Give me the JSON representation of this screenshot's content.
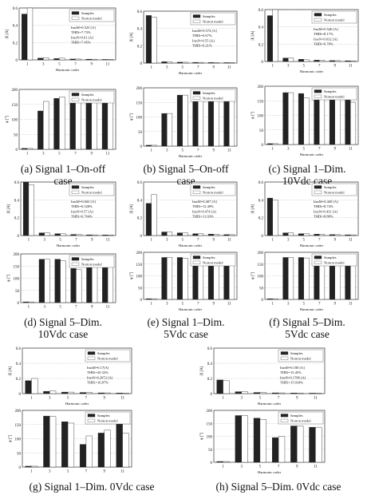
{
  "colors": {
    "samples": "#222222",
    "model": "#ffffff",
    "axis": "#333333",
    "grid": "#bdbdbd"
  },
  "legend": {
    "samples": "Samples",
    "model": "Norton model"
  },
  "chart_data": [
    {
      "id": "a",
      "caption": [
        "(a) Signal 1–On-off",
        "case"
      ],
      "top": {
        "type": "bar",
        "ylabel": "|I| [A]",
        "xlabel": "Harmonic order",
        "categories": [
          "1",
          "3",
          "5",
          "7",
          "9",
          "11"
        ],
        "ylim": [
          0,
          0.6
        ],
        "yticks": [
          "0",
          "0.2",
          "0.4",
          "0.6"
        ],
        "series": [
          {
            "name": "Samples",
            "values": [
              0.53,
              0.02,
              0.015,
              0.01,
              0.008,
              0.005
            ]
          },
          {
            "name": "Norton model",
            "values": [
              0.61,
              0.025,
              0.02,
              0.01,
              0.008,
              0.005
            ]
          }
        ],
        "annotation": [
          "ImsM=0.525 [A]",
          "THDi=7.73%",
          "ImsN=0.61 [A]",
          "THDi=7.45%"
        ]
      },
      "bottom": {
        "type": "bar",
        "ylabel": "φ [°]",
        "xlabel": "",
        "categories": [
          "1",
          "3",
          "5",
          "7",
          "9",
          "11"
        ],
        "ylim": [
          0,
          200
        ],
        "yticks": [
          "0",
          "50",
          "100",
          "150",
          "200"
        ],
        "series": [
          {
            "name": "Samples",
            "values": [
              3,
              128,
              170,
              172,
              172,
              172
            ]
          },
          {
            "name": "Norton model",
            "values": [
              3,
              160,
              175,
              175,
              175,
              175
            ]
          }
        ]
      }
    },
    {
      "id": "b",
      "caption": [
        "(b) Signal 5–On-off",
        "case"
      ],
      "top": {
        "type": "bar",
        "ylabel": "|I| [A]",
        "xlabel": "Harmonic order",
        "categories": [
          "1",
          "3",
          "5",
          "7",
          "9",
          "11"
        ],
        "ylim": [
          0,
          0.6
        ],
        "yticks": [
          "0",
          "0.2",
          "0.4",
          "0.6"
        ],
        "series": [
          {
            "name": "Samples",
            "values": [
              0.55,
              0.015,
              0.01,
              0.008,
              0.006,
              0.005
            ]
          },
          {
            "name": "Norton model",
            "values": [
              0.53,
              0.015,
              0.01,
              0.008,
              0.006,
              0.005
            ]
          }
        ],
        "annotation": [
          "ImsM=0.574 [A]",
          "THDi=6.67%",
          "ImsN=0.55 [A]",
          "THDi=6.21%"
        ]
      },
      "bottom": {
        "type": "bar",
        "ylabel": "φ [°]",
        "xlabel": "Harmonic order",
        "categories": [
          "1",
          "3",
          "5",
          "7",
          "9",
          "11"
        ],
        "ylim": [
          0,
          200
        ],
        "yticks": [
          "0",
          "50",
          "100",
          "150",
          "200"
        ],
        "series": [
          {
            "name": "Samples",
            "values": [
              3,
              112,
              175,
              175,
              175,
              175
            ]
          },
          {
            "name": "Norton model",
            "values": [
              3,
              112,
              175,
              175,
              175,
              175
            ]
          }
        ]
      }
    },
    {
      "id": "c",
      "caption": [
        "(c) Signal 1–Dim.",
        "10Vdc case"
      ],
      "top": {
        "type": "bar",
        "ylabel": "|I| [A]",
        "xlabel": "Harmonic order",
        "categories": [
          "1",
          "3",
          "5",
          "7",
          "9",
          "11"
        ],
        "ylim": [
          0,
          0.6
        ],
        "yticks": [
          "0",
          "0.2",
          "0.4",
          "0.6"
        ],
        "series": [
          {
            "name": "Samples",
            "values": [
              0.53,
              0.04,
              0.025,
              0.015,
              0.01,
              0.008
            ]
          },
          {
            "name": "Norton model",
            "values": [
              0.62,
              0.04,
              0.02,
              0.015,
              0.01,
              0.008
            ]
          }
        ],
        "annotation": [
          "ImsM=0.546 [A]",
          "THDi=8.17%",
          "ImsN=0.632 [A]",
          "THDi=6.78%"
        ]
      },
      "bottom": {
        "type": "bar",
        "ylabel": "φ [°]",
        "xlabel": "Harmonic order",
        "categories": [
          "1",
          "3",
          "5",
          "7",
          "9",
          "11"
        ],
        "ylim": [
          0,
          200
        ],
        "yticks": [
          "0",
          "50",
          "100",
          "150",
          "200"
        ],
        "series": [
          {
            "name": "Samples",
            "values": [
              3,
              178,
              175,
              170,
              178,
              172
            ]
          },
          {
            "name": "Norton model",
            "values": [
              3,
              178,
              160,
              160,
              165,
              145
            ]
          }
        ]
      }
    },
    {
      "id": "d",
      "caption": [
        "(d) Signal 5–Dim.",
        "10Vdc case"
      ],
      "top": {
        "type": "bar",
        "ylabel": "|I| [A]",
        "xlabel": "Harmonic order",
        "categories": [
          "1",
          "3",
          "5",
          "7",
          "9",
          "11"
        ],
        "ylim": [
          0,
          0.6
        ],
        "yticks": [
          "0",
          "0.2",
          "0.4",
          "0.6"
        ],
        "series": [
          {
            "name": "Samples",
            "values": [
              0.6,
              0.03,
              0.02,
              0.012,
              0.008,
              0.006
            ]
          },
          {
            "name": "Norton model",
            "values": [
              0.57,
              0.03,
              0.02,
              0.012,
              0.008,
              0.006
            ]
          }
        ],
        "annotation": [
          "ImsM=0.602 [A]",
          "THDi=6.528%",
          "ImsN=0.57 [A]",
          "THDi=6.764%"
        ]
      },
      "bottom": {
        "type": "bar",
        "ylabel": "φ [°]",
        "xlabel": "",
        "categories": [
          "1",
          "3",
          "5",
          "7",
          "9",
          "11"
        ],
        "ylim": [
          0,
          200
        ],
        "yticks": [
          "0",
          "50",
          "100",
          "150",
          "200"
        ],
        "series": [
          {
            "name": "Samples",
            "values": [
              3,
              178,
              178,
              140,
              160,
              165
            ]
          },
          {
            "name": "Norton model",
            "values": [
              3,
              178,
              172,
              135,
              162,
              163
            ]
          }
        ]
      }
    },
    {
      "id": "e",
      "caption": [
        "(e) Signal 1–Dim.",
        "5Vdc case"
      ],
      "top": {
        "type": "bar",
        "ylabel": "|I| [A]",
        "xlabel": "Harmonic order",
        "categories": [
          "1",
          "3",
          "5",
          "7",
          "9",
          "11"
        ],
        "ylim": [
          0,
          0.6
        ],
        "yticks": [
          "0",
          "0.2",
          "0.4",
          "0.6"
        ],
        "series": [
          {
            "name": "Samples",
            "values": [
              0.36,
              0.04,
              0.03,
              0.02,
              0.015,
              0.01
            ]
          },
          {
            "name": "Norton model",
            "values": [
              0.46,
              0.04,
              0.03,
              0.02,
              0.015,
              0.01
            ]
          }
        ],
        "annotation": [
          "ImsM=0.407 [A]",
          "THDi=12.49%",
          "ImsN=0.474 [A]",
          "THDi=11.03%"
        ]
      },
      "bottom": {
        "type": "bar",
        "ylabel": "φ [°]",
        "xlabel": "Harmonic order",
        "categories": [
          "1",
          "3",
          "5",
          "7",
          "9",
          "11"
        ],
        "ylim": [
          0,
          200
        ],
        "yticks": [
          "0",
          "50",
          "100",
          "150",
          "200"
        ],
        "series": [
          {
            "name": "Samples",
            "values": [
              3,
              178,
              178,
              168,
              160,
              150
            ]
          },
          {
            "name": "Norton model",
            "values": [
              3,
              178,
              175,
              160,
              155,
              150
            ]
          }
        ]
      }
    },
    {
      "id": "f",
      "caption": [
        "(f) Signal 5–Dim.",
        "5Vdc case"
      ],
      "top": {
        "type": "bar",
        "ylabel": "|I| [A]",
        "xlabel": "Harmonic order",
        "categories": [
          "1",
          "3",
          "5",
          "7",
          "9",
          "11"
        ],
        "ylim": [
          0,
          0.6
        ],
        "yticks": [
          "0",
          "0.2",
          "0.4",
          "0.6"
        ],
        "series": [
          {
            "name": "Samples",
            "values": [
              0.42,
              0.03,
              0.02,
              0.015,
              0.01,
              0.008
            ]
          },
          {
            "name": "Norton model",
            "values": [
              0.4,
              0.03,
              0.02,
              0.015,
              0.01,
              0.008
            ]
          }
        ],
        "annotation": [
          "ImsM=0.449 [A]",
          "THDi=8.74%",
          "ImsN=0.431 [A]",
          "THDi=8.88%"
        ]
      },
      "bottom": {
        "type": "bar",
        "ylabel": "φ [°]",
        "xlabel": "Harmonic order",
        "categories": [
          "1",
          "3",
          "5",
          "7",
          "9",
          "11"
        ],
        "ylim": [
          0,
          200
        ],
        "yticks": [
          "0",
          "50",
          "100",
          "150",
          "200"
        ],
        "series": [
          {
            "name": "Samples",
            "values": [
              3,
              178,
              178,
              175,
              170,
              165
            ]
          },
          {
            "name": "Norton model",
            "values": [
              3,
              178,
              176,
              172,
              168,
              165
            ]
          }
        ]
      }
    },
    {
      "id": "g",
      "caption": [
        "(g) Signal 1–Dim. 0Vdc case"
      ],
      "top": {
        "type": "bar",
        "ylabel": "|I| [A]",
        "xlabel": "Harmonic order",
        "categories": [
          "1",
          "3",
          "5",
          "7",
          "9",
          "11"
        ],
        "ylim": [
          0,
          0.6
        ],
        "yticks": [
          "0",
          "0.2",
          "0.4",
          "0.6"
        ],
        "series": [
          {
            "name": "Samples",
            "values": [
              0.17,
              0.03,
              0.02,
              0.015,
              0.01,
              0.008
            ]
          },
          {
            "name": "Norton model",
            "values": [
              0.2,
              0.035,
              0.02,
              0.015,
              0.01,
              0.008
            ]
          }
        ],
        "annotation": [
          "ImsM=0.17[A]",
          "THDi=20.32%",
          "ImsN=0.2072 [A]",
          "THDi=16.87%"
        ]
      },
      "bottom": {
        "type": "bar",
        "ylabel": "φ [°]",
        "xlabel": "",
        "categories": [
          "1",
          "3",
          "5",
          "7",
          "9",
          "11"
        ],
        "ylim": [
          0,
          200
        ],
        "yticks": [
          "0",
          "50",
          "100",
          "150",
          "200"
        ],
        "series": [
          {
            "name": "Samples",
            "values": [
              3,
              180,
              160,
              80,
              120,
              160
            ]
          },
          {
            "name": "Norton model",
            "values": [
              3,
              178,
              155,
              110,
              130,
              120
            ]
          }
        ]
      }
    },
    {
      "id": "h",
      "caption": [
        "(h) Signal 5–Dim. 0Vdc case"
      ],
      "top": {
        "type": "bar",
        "ylabel": "|I| [A]",
        "xlabel": "Harmonic order",
        "categories": [
          "1",
          "3",
          "5",
          "7",
          "9",
          "11"
        ],
        "ylim": [
          0,
          0.6
        ],
        "yticks": [
          "0",
          "0.2",
          "0.4",
          "0.6"
        ],
        "series": [
          {
            "name": "Samples",
            "values": [
              0.18,
              0.025,
              0.015,
              0.01,
              0.008,
              0.006
            ]
          },
          {
            "name": "Norton model",
            "values": [
              0.17,
              0.025,
              0.015,
              0.01,
              0.008,
              0.006
            ]
          }
        ],
        "annotation": [
          "ImsM=0.180 [A]",
          "THDi=15.45%",
          "ImsN=0.1786 [A]",
          "THDi=15.034%"
        ]
      },
      "bottom": {
        "type": "bar",
        "ylabel": "φ [°]",
        "xlabel": "Harmonic order",
        "categories": [
          "1",
          "3",
          "5",
          "7",
          "9",
          "11"
        ],
        "ylim": [
          0,
          200
        ],
        "yticks": [
          "0",
          "50",
          "100",
          "150",
          "200"
        ],
        "series": [
          {
            "name": "Samples",
            "values": [
              3,
              180,
              170,
              95,
              140,
              135
            ]
          },
          {
            "name": "Norton model",
            "values": [
              3,
              180,
              165,
              100,
              140,
              135
            ]
          }
        ]
      }
    }
  ]
}
